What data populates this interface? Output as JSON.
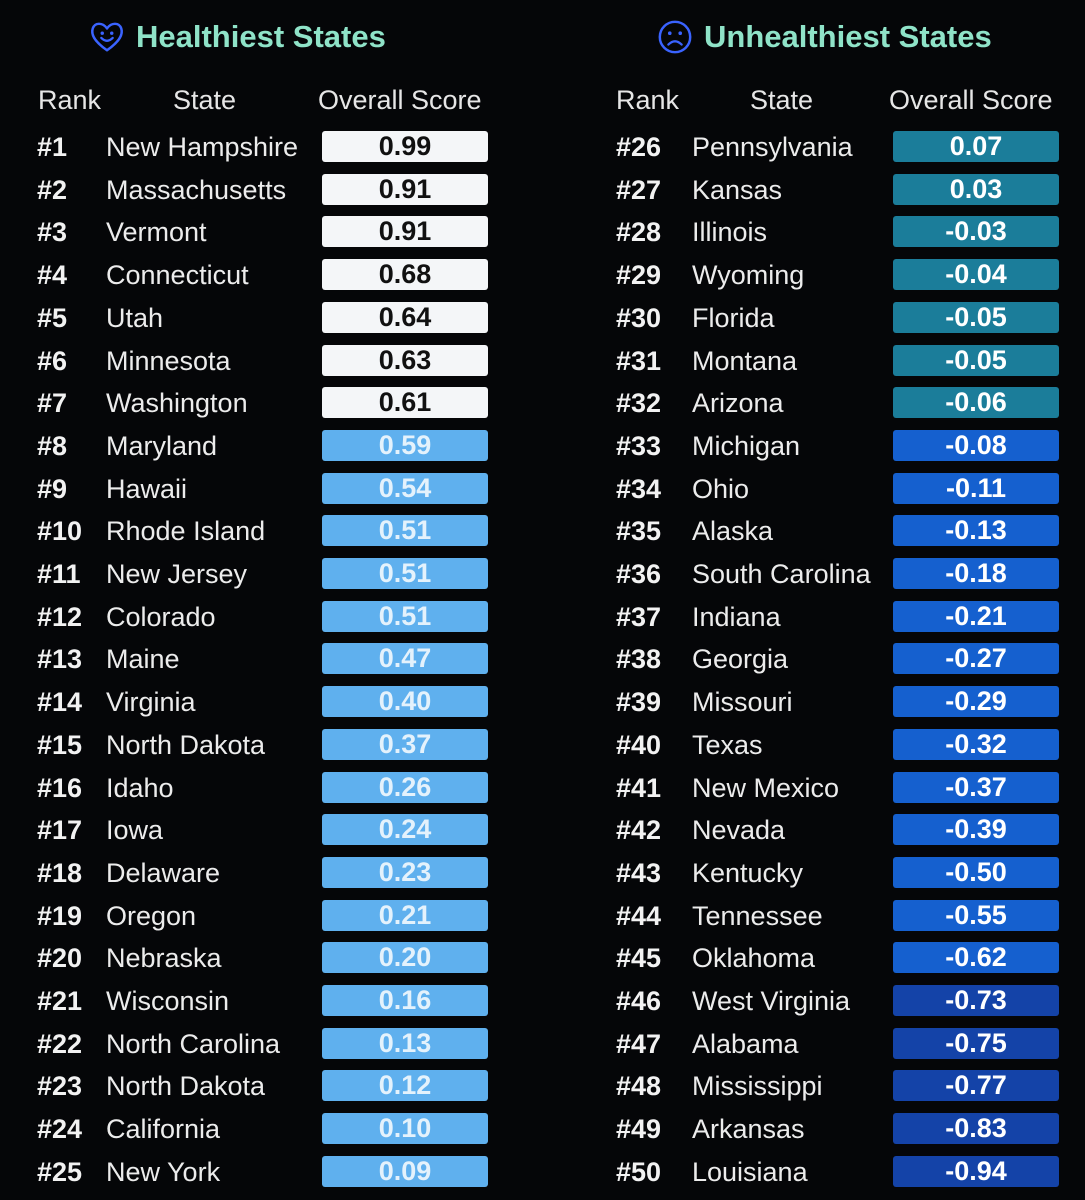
{
  "chart_data": {
    "type": "table",
    "tables": [
      {
        "title": "Healthiest States",
        "icon": "smiling-heart-icon",
        "columns": [
          "Rank",
          "State",
          "Overall Score"
        ],
        "rows": [
          {
            "rank": "#1",
            "state": "New Hampshire",
            "score": "0.99"
          },
          {
            "rank": "#2",
            "state": "Massachusetts",
            "score": "0.91"
          },
          {
            "rank": "#3",
            "state": "Vermont",
            "score": "0.91"
          },
          {
            "rank": "#4",
            "state": "Connecticut",
            "score": "0.68"
          },
          {
            "rank": "#5",
            "state": "Utah",
            "score": "0.64"
          },
          {
            "rank": "#6",
            "state": "Minnesota",
            "score": "0.63"
          },
          {
            "rank": "#7",
            "state": "Washington",
            "score": "0.61"
          },
          {
            "rank": "#8",
            "state": "Maryland",
            "score": "0.59"
          },
          {
            "rank": "#9",
            "state": "Hawaii",
            "score": "0.54"
          },
          {
            "rank": "#10",
            "state": "Rhode Island",
            "score": "0.51"
          },
          {
            "rank": "#11",
            "state": "New Jersey",
            "score": "0.51"
          },
          {
            "rank": "#12",
            "state": "Colorado",
            "score": "0.51"
          },
          {
            "rank": "#13",
            "state": "Maine",
            "score": "0.47"
          },
          {
            "rank": "#14",
            "state": "Virginia",
            "score": "0.40"
          },
          {
            "rank": "#15",
            "state": "North Dakota",
            "score": "0.37"
          },
          {
            "rank": "#16",
            "state": "Idaho",
            "score": "0.26"
          },
          {
            "rank": "#17",
            "state": "Iowa",
            "score": "0.24"
          },
          {
            "rank": "#18",
            "state": "Delaware",
            "score": "0.23"
          },
          {
            "rank": "#19",
            "state": "Oregon",
            "score": "0.21"
          },
          {
            "rank": "#20",
            "state": "Nebraska",
            "score": "0.20"
          },
          {
            "rank": "#21",
            "state": "Wisconsin",
            "score": "0.16"
          },
          {
            "rank": "#22",
            "state": "North Carolina",
            "score": "0.13"
          },
          {
            "rank": "#23",
            "state": "North Dakota",
            "score": "0.12"
          },
          {
            "rank": "#24",
            "state": "California",
            "score": "0.10"
          },
          {
            "rank": "#25",
            "state": "New York",
            "score": "0.09"
          }
        ]
      },
      {
        "title": "Unhealthiest States",
        "icon": "frowning-face-icon",
        "columns": [
          "Rank",
          "State",
          "Overall Score"
        ],
        "rows": [
          {
            "rank": "#26",
            "state": "Pennsylvania",
            "score": "0.07"
          },
          {
            "rank": "#27",
            "state": "Kansas",
            "score": "0.03"
          },
          {
            "rank": "#28",
            "state": "Illinois",
            "score": "-0.03"
          },
          {
            "rank": "#29",
            "state": "Wyoming",
            "score": "-0.04"
          },
          {
            "rank": "#30",
            "state": "Florida",
            "score": "-0.05"
          },
          {
            "rank": "#31",
            "state": "Montana",
            "score": "-0.05"
          },
          {
            "rank": "#32",
            "state": "Arizona",
            "score": "-0.06"
          },
          {
            "rank": "#33",
            "state": "Michigan",
            "score": "-0.08"
          },
          {
            "rank": "#34",
            "state": "Ohio",
            "score": "-0.11"
          },
          {
            "rank": "#35",
            "state": "Alaska",
            "score": "-0.13"
          },
          {
            "rank": "#36",
            "state": "South Carolina",
            "score": "-0.18"
          },
          {
            "rank": "#37",
            "state": "Indiana",
            "score": "-0.21"
          },
          {
            "rank": "#38",
            "state": "Georgia",
            "score": "-0.27"
          },
          {
            "rank": "#39",
            "state": "Missouri",
            "score": "-0.29"
          },
          {
            "rank": "#40",
            "state": "Texas",
            "score": "-0.32"
          },
          {
            "rank": "#41",
            "state": "New Mexico",
            "score": "-0.37"
          },
          {
            "rank": "#42",
            "state": "Nevada",
            "score": "-0.39"
          },
          {
            "rank": "#43",
            "state": "Kentucky",
            "score": "-0.50"
          },
          {
            "rank": "#44",
            "state": "Tennessee",
            "score": "-0.55"
          },
          {
            "rank": "#45",
            "state": "Oklahoma",
            "score": "-0.62"
          },
          {
            "rank": "#46",
            "state": "West Virginia",
            "score": "-0.73"
          },
          {
            "rank": "#47",
            "state": "Alabama",
            "score": "-0.75"
          },
          {
            "rank": "#48",
            "state": "Mississippi",
            "score": "-0.77"
          },
          {
            "rank": "#49",
            "state": "Arkansas",
            "score": "-0.83"
          },
          {
            "rank": "#50",
            "state": "Louisiana",
            "score": "-0.94"
          }
        ]
      }
    ]
  },
  "colors": {
    "background": "#050608",
    "title_text": "#8fe3c8",
    "top_score_fill": "#f4f6f8",
    "top_score_text": "#111111",
    "mid_score_fill": "#5fb0ee",
    "mid_score_text": "#e4f2fc",
    "teal_score_fill": "#1b7d9a",
    "blue_score_fill": "#1560cf",
    "deep_blue_score_fill": "#1443a8",
    "score_text_light": "#ffffff"
  }
}
